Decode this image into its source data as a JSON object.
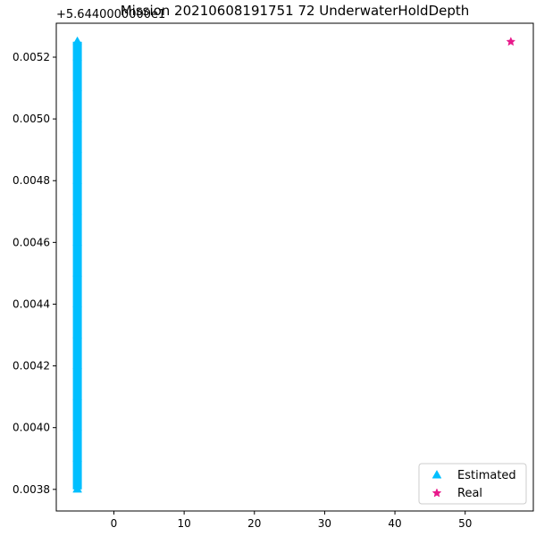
{
  "chart_data": {
    "type": "scatter",
    "title": "Mission 20210608191751 72 UnderwaterHoldDepth",
    "offset_label": "+5.6440000000e1",
    "xlabel": "",
    "ylabel": "",
    "xlim": [
      -8.2,
      59.7
    ],
    "ylim": [
      0.00373,
      0.00531
    ],
    "x_ticks": [
      0,
      10,
      20,
      30,
      40,
      50
    ],
    "y_ticks": [
      0.0038,
      0.004,
      0.0042,
      0.0044,
      0.0046,
      0.0048,
      0.005,
      0.0052
    ],
    "y_tick_labels": [
      "0.0038",
      "0.0040",
      "0.0042",
      "0.0044",
      "0.0046",
      "0.0048",
      "0.0050",
      "0.0052"
    ],
    "grid": false,
    "legend_position": "lower right",
    "series": [
      {
        "name": "Estimated",
        "marker": "triangle",
        "color": "#00bfff",
        "points": [
          {
            "x": -5.2,
            "y": 0.0038
          },
          {
            "x": -5.2,
            "y": 0.0039
          },
          {
            "x": -5.2,
            "y": 0.004
          },
          {
            "x": -5.2,
            "y": 0.0041
          },
          {
            "x": -5.2,
            "y": 0.0042
          },
          {
            "x": -5.2,
            "y": 0.0043
          },
          {
            "x": -5.2,
            "y": 0.0044
          },
          {
            "x": -5.2,
            "y": 0.0045
          },
          {
            "x": -5.2,
            "y": 0.0046
          },
          {
            "x": -5.2,
            "y": 0.0047
          },
          {
            "x": -5.2,
            "y": 0.0048
          },
          {
            "x": -5.2,
            "y": 0.0049
          },
          {
            "x": -5.2,
            "y": 0.005
          },
          {
            "x": -5.2,
            "y": 0.0051
          },
          {
            "x": -5.2,
            "y": 0.0052
          },
          {
            "x": -5.2,
            "y": 0.00525
          }
        ]
      },
      {
        "name": "Real",
        "marker": "star",
        "color": "#e8198b",
        "points": [
          {
            "x": 56.5,
            "y": 0.00525
          }
        ]
      }
    ]
  }
}
